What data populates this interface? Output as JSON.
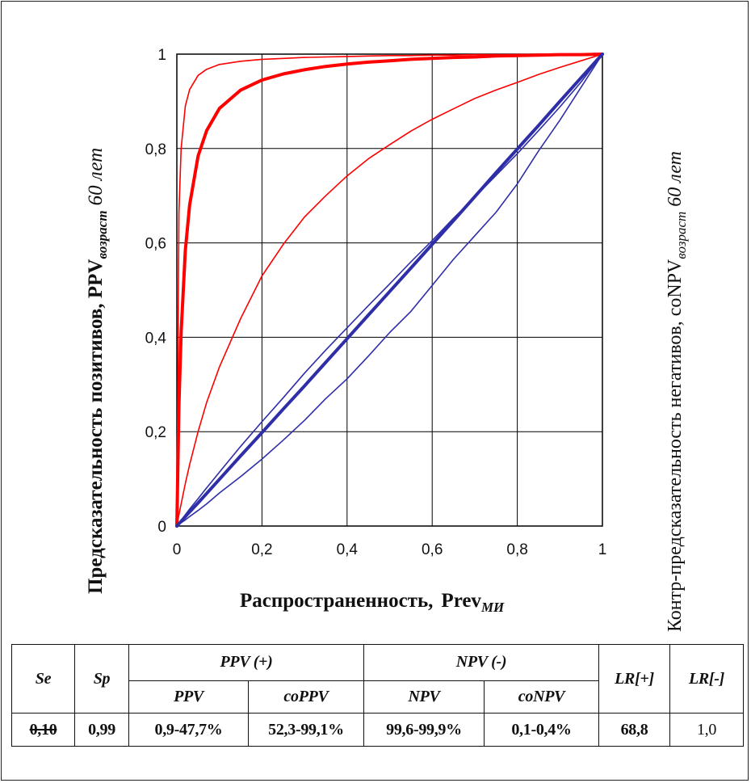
{
  "chart_data": {
    "type": "line",
    "xlabel": "Распространенность,",
    "xlabel_main": "Prev",
    "xlabel_sub": "МИ",
    "ylabel_left_main": "Предсказательность позитивов, PPV",
    "ylabel_left_sub": "возраст",
    "ylabel_left_tail": "60 лет",
    "ylabel_right_main": "Контр-предсказательность негативов, coNPV",
    "ylabel_right_sub": "возраст",
    "ylabel_right_tail": "60 лет",
    "xlim": [
      0,
      1
    ],
    "ylim": [
      0,
      1
    ],
    "xticks": [
      "0",
      "0,2",
      "0,4",
      "0,6",
      "0,8",
      "1"
    ],
    "yticks": [
      "0",
      "0,2",
      "0,4",
      "0,6",
      "0,8",
      "1"
    ],
    "grid": true,
    "x": [
      0,
      0.005,
      0.01,
      0.02,
      0.03,
      0.05,
      0.07,
      0.1,
      0.15,
      0.2,
      0.25,
      0.3,
      0.35,
      0.4,
      0.45,
      0.5,
      0.55,
      0.6,
      0.65,
      0.7,
      0.75,
      0.8,
      0.85,
      0.9,
      0.95,
      1
    ],
    "series": [
      {
        "color": "#ff0000",
        "width": 1.6,
        "values": [
          0,
          0.665,
          0.8,
          0.89,
          0.925,
          0.955,
          0.968,
          0.978,
          0.985,
          0.989,
          0.991,
          0.993,
          0.994,
          0.995,
          0.996,
          0.997,
          0.997,
          0.998,
          0.998,
          0.999,
          0.999,
          0.999,
          1,
          1,
          1,
          1
        ]
      },
      {
        "color": "#ff0000",
        "width": 4,
        "values": [
          0,
          0.257,
          0.41,
          0.584,
          0.68,
          0.784,
          0.838,
          0.885,
          0.924,
          0.945,
          0.958,
          0.967,
          0.974,
          0.979,
          0.983,
          0.986,
          0.989,
          0.991,
          0.993,
          0.994,
          0.996,
          0.997,
          0.998,
          0.999,
          0.999,
          1
        ]
      },
      {
        "color": "#ff0000",
        "width": 1.6,
        "values": [
          0,
          0.024,
          0.047,
          0.09,
          0.13,
          0.2,
          0.262,
          0.337,
          0.44,
          0.53,
          0.597,
          0.655,
          0.7,
          0.742,
          0.778,
          0.808,
          0.837,
          0.862,
          0.884,
          0.906,
          0.924,
          0.94,
          0.957,
          0.972,
          0.986,
          1
        ]
      },
      {
        "color": "#2e2ea8",
        "width": 4,
        "values": [
          0,
          0.005,
          0.01,
          0.02,
          0.03,
          0.049,
          0.069,
          0.099,
          0.149,
          0.198,
          0.248,
          0.297,
          0.347,
          0.397,
          0.447,
          0.497,
          0.547,
          0.597,
          0.647,
          0.698,
          0.749,
          0.799,
          0.849,
          0.9,
          0.95,
          1
        ]
      },
      {
        "color": "#2e2ea8",
        "width": 1.6,
        "values": [
          0,
          0.006,
          0.012,
          0.024,
          0.036,
          0.058,
          0.081,
          0.114,
          0.169,
          0.221,
          0.272,
          0.324,
          0.373,
          0.42,
          0.467,
          0.513,
          0.56,
          0.605,
          0.652,
          0.697,
          0.743,
          0.789,
          0.838,
          0.888,
          0.941,
          1
        ]
      },
      {
        "color": "#2e2ea8",
        "width": 1.6,
        "values": [
          0,
          0.003,
          0.007,
          0.013,
          0.02,
          0.033,
          0.047,
          0.07,
          0.105,
          0.142,
          0.182,
          0.224,
          0.27,
          0.312,
          0.36,
          0.41,
          0.455,
          0.51,
          0.565,
          0.615,
          0.665,
          0.725,
          0.795,
          0.86,
          0.93,
          1
        ]
      }
    ]
  },
  "table": {
    "h_se": "Se",
    "h_sp": "Sp",
    "h_ppv_group": "PPV (+)",
    "h_npv_group": "NPV (-)",
    "h_lr_pos": "LR[+]",
    "h_lr_neg": "LR[-]",
    "h_ppv": "PPV",
    "h_coppv": "coPPV",
    "h_npv": "NPV",
    "h_conpv": "coNPV",
    "v_se": "0,10",
    "v_sp": "0,99",
    "v_ppv": "0,9-47,7%",
    "v_coppv": "52,3-99,1%",
    "v_npv": "99,6-99,9%",
    "v_conpv": "0,1-0,4%",
    "v_lr_pos": "68,8",
    "v_lr_neg": "1,0"
  }
}
